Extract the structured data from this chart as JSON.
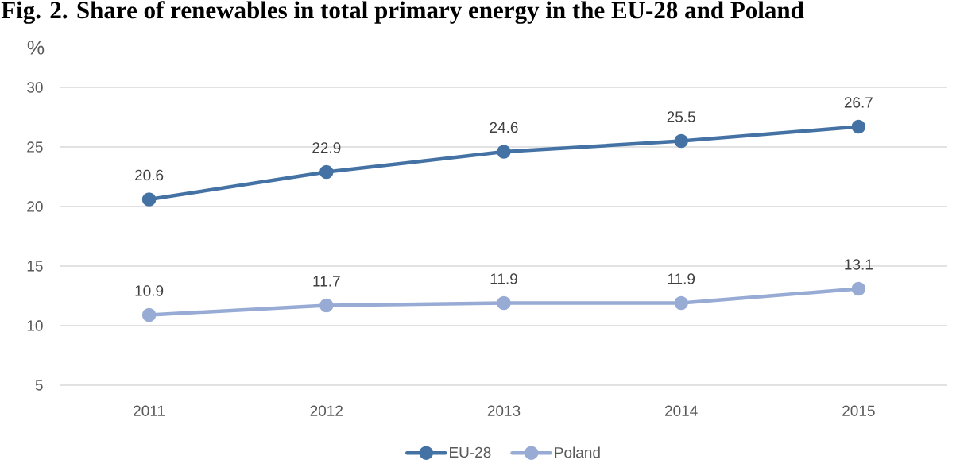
{
  "chart_data": {
    "type": "line",
    "title": "Fig. 2. Share of renewables in total primary energy in the EU-28 and Poland",
    "ylabel": "%",
    "categories": [
      "2011",
      "2012",
      "2013",
      "2014",
      "2015"
    ],
    "series": [
      {
        "name": "EU-28",
        "color": "#4472a4",
        "values": [
          20.6,
          22.9,
          24.6,
          25.5,
          26.7
        ]
      },
      {
        "name": "Poland",
        "color": "#97abd4",
        "values": [
          10.9,
          11.7,
          11.9,
          11.9,
          13.1
        ]
      }
    ],
    "ylim": [
      5,
      30
    ],
    "yticks": [
      5,
      10,
      15,
      20,
      25,
      30
    ],
    "grid": "y",
    "legend": "bottom",
    "marker": "circle",
    "line_style": "solid",
    "data_labels": true
  }
}
